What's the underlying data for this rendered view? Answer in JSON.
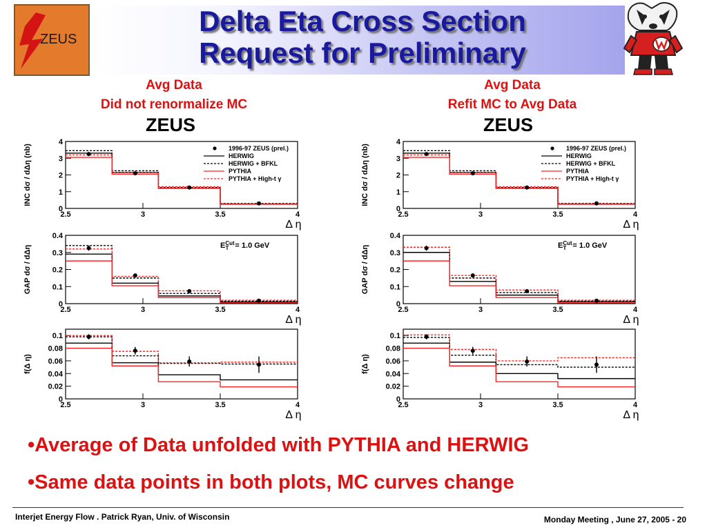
{
  "slide": {
    "title_line1": "Delta Eta Cross Section",
    "title_line2": "Request for Preliminary",
    "logo_text": "ZEUS",
    "bullets": [
      "•Average of Data unfolded with PYTHIA and HERWIG",
      "•Same data points in both plots, MC curves change"
    ],
    "footer_left": "Interjet Energy Flow . Patrick Ryan, Univ. of Wisconsin",
    "footer_right": "Monday Meeting , June 27, 2005 - 20"
  },
  "figures": [
    {
      "subtitle_line1": "Avg Data",
      "subtitle_line2": "Did not renormalize MC",
      "heading": "ZEUS"
    },
    {
      "subtitle_line1": "Avg Data",
      "subtitle_line2": "Refit MC to Avg Data",
      "heading": "ZEUS"
    }
  ],
  "colors": {
    "title": "#1a1a9e",
    "accent_red": "#dd1111",
    "mc_red": "#ff2222",
    "logo_orange": "#e47a2c"
  },
  "chart_data": [
    {
      "figure": "Avg Data / Did not renormalize MC",
      "panel": "INC",
      "type": "line",
      "ylabel": "INC dσ / dΔη (nb)",
      "xlabel": "Δ η",
      "xlim": [
        2.5,
        4
      ],
      "ylim": [
        0,
        4
      ],
      "xticks": [
        "2.5",
        "3",
        "3.5",
        "4"
      ],
      "yticks": [
        "0",
        "1",
        "2",
        "3",
        "4"
      ],
      "bin_edges": [
        2.5,
        2.8,
        3.1,
        3.5,
        4.0
      ],
      "data": {
        "name": "1996-97 ZEUS (prel.)",
        "x": [
          2.65,
          2.95,
          3.3,
          3.75
        ],
        "y": [
          3.25,
          2.1,
          1.25,
          0.3
        ],
        "err": [
          0.1,
          0.06,
          0.04,
          0.02
        ]
      },
      "series": [
        {
          "name": "HERWIG",
          "values": [
            3.3,
            2.15,
            1.2,
            0.25
          ]
        },
        {
          "name": "HERWIG + BFKL",
          "values": [
            3.45,
            2.25,
            1.25,
            0.3
          ]
        },
        {
          "name": "PYTHIA",
          "values": [
            3.05,
            2.05,
            1.2,
            0.25
          ]
        },
        {
          "name": "PYTHIA + High-t γ",
          "values": [
            3.2,
            2.15,
            1.3,
            0.28
          ]
        }
      ],
      "legend_position": "top-right"
    },
    {
      "figure": "Avg Data / Did not renormalize MC",
      "panel": "GAP",
      "type": "line",
      "ylabel": "GAP dσ / dΔη",
      "xlabel": "Δ η",
      "xlim": [
        2.5,
        4
      ],
      "ylim": [
        0,
        0.4
      ],
      "xticks": [
        "2.5",
        "3",
        "3.5",
        "4"
      ],
      "yticks": [
        "0",
        "0.1",
        "0.2",
        "0.3",
        "0.4"
      ],
      "bin_edges": [
        2.5,
        2.8,
        3.1,
        3.5,
        4.0
      ],
      "annotation": "E_T^Cut = 1.0 GeV",
      "data": {
        "name": "1996-97 ZEUS (prel.)",
        "x": [
          2.65,
          2.95,
          3.3,
          3.75
        ],
        "y": [
          0.325,
          0.165,
          0.073,
          0.017
        ],
        "err": [
          0.015,
          0.01,
          0.006,
          0.003
        ]
      },
      "series": [
        {
          "name": "HERWIG",
          "values": [
            0.29,
            0.12,
            0.045,
            0.01
          ]
        },
        {
          "name": "HERWIG + BFKL",
          "values": [
            0.34,
            0.15,
            0.06,
            0.015
          ]
        },
        {
          "name": "PYTHIA",
          "values": [
            0.25,
            0.105,
            0.035,
            0.005
          ]
        },
        {
          "name": "PYTHIA + High-t γ",
          "values": [
            0.32,
            0.16,
            0.075,
            0.02
          ]
        }
      ]
    },
    {
      "figure": "Avg Data / Did not renormalize MC",
      "panel": "f",
      "type": "line",
      "ylabel": "f(Δ η)",
      "xlabel": "Δ η",
      "xlim": [
        2.5,
        4
      ],
      "ylim": [
        0,
        0.11
      ],
      "xticks": [
        "2.5",
        "3",
        "3.5",
        "4"
      ],
      "yticks": [
        "0",
        "0.02",
        "0.04",
        "0.06",
        "0.08",
        "0.1"
      ],
      "bin_edges": [
        2.5,
        2.8,
        3.1,
        3.5,
        4.0
      ],
      "data": {
        "name": "1996-97 ZEUS (prel.)",
        "x": [
          2.65,
          2.95,
          3.3,
          3.75
        ],
        "y": [
          0.098,
          0.076,
          0.059,
          0.054
        ],
        "err": [
          0.004,
          0.006,
          0.008,
          0.013
        ]
      },
      "series": [
        {
          "name": "HERWIG",
          "values": [
            0.088,
            0.057,
            0.038,
            0.03
          ]
        },
        {
          "name": "HERWIG + BFKL",
          "values": [
            0.098,
            0.068,
            0.056,
            0.055
          ]
        },
        {
          "name": "PYTHIA",
          "values": [
            0.08,
            0.052,
            0.027,
            0.019
          ]
        },
        {
          "name": "PYTHIA + High-t γ",
          "values": [
            0.1,
            0.075,
            0.057,
            0.058
          ]
        }
      ]
    },
    {
      "figure": "Avg Data / Refit MC to Avg Data",
      "panel": "INC",
      "type": "line",
      "ylabel": "INC dσ / dΔη (nb)",
      "xlabel": "Δ η",
      "xlim": [
        2.5,
        4
      ],
      "ylim": [
        0,
        4
      ],
      "xticks": [
        "2.5",
        "3",
        "3.5",
        "4"
      ],
      "yticks": [
        "0",
        "1",
        "2",
        "3",
        "4"
      ],
      "bin_edges": [
        2.5,
        2.8,
        3.1,
        3.5,
        4.0
      ],
      "data": {
        "name": "1996-97 ZEUS (prel.)",
        "x": [
          2.65,
          2.95,
          3.3,
          3.75
        ],
        "y": [
          3.25,
          2.1,
          1.25,
          0.3
        ],
        "err": [
          0.1,
          0.06,
          0.04,
          0.02
        ]
      },
      "series": [
        {
          "name": "HERWIG",
          "values": [
            3.3,
            2.15,
            1.2,
            0.25
          ]
        },
        {
          "name": "HERWIG + BFKL",
          "values": [
            3.45,
            2.25,
            1.25,
            0.3
          ]
        },
        {
          "name": "PYTHIA",
          "values": [
            3.05,
            2.05,
            1.2,
            0.25
          ]
        },
        {
          "name": "PYTHIA + High-t γ",
          "values": [
            3.2,
            2.15,
            1.3,
            0.28
          ]
        }
      ],
      "legend_position": "top-right"
    },
    {
      "figure": "Avg Data / Refit MC to Avg Data",
      "panel": "GAP",
      "type": "line",
      "ylabel": "GAP dσ / dΔη",
      "xlabel": "Δ η",
      "xlim": [
        2.5,
        4
      ],
      "ylim": [
        0,
        0.4
      ],
      "xticks": [
        "2.5",
        "3",
        "3.5",
        "4"
      ],
      "yticks": [
        "0",
        "0.1",
        "0.2",
        "0.3",
        "0.4"
      ],
      "bin_edges": [
        2.5,
        2.8,
        3.1,
        3.5,
        4.0
      ],
      "annotation": "E_T^Cut = 1.0 GeV",
      "data": {
        "name": "1996-97 ZEUS (prel.)",
        "x": [
          2.65,
          2.95,
          3.3,
          3.75
        ],
        "y": [
          0.325,
          0.165,
          0.073,
          0.017
        ],
        "err": [
          0.015,
          0.01,
          0.006,
          0.003
        ]
      },
      "series": [
        {
          "name": "HERWIG",
          "values": [
            0.3,
            0.13,
            0.05,
            0.012
          ]
        },
        {
          "name": "HERWIG + BFKL",
          "values": [
            0.33,
            0.15,
            0.065,
            0.015
          ]
        },
        {
          "name": "PYTHIA",
          "values": [
            0.25,
            0.105,
            0.035,
            0.005
          ]
        },
        {
          "name": "PYTHIA + High-t γ",
          "values": [
            0.33,
            0.165,
            0.08,
            0.02
          ]
        }
      ]
    },
    {
      "figure": "Avg Data / Refit MC to Avg Data",
      "panel": "f",
      "type": "line",
      "ylabel": "f(Δ η)",
      "xlabel": "Δ η",
      "xlim": [
        2.5,
        4
      ],
      "ylim": [
        0,
        0.11
      ],
      "xticks": [
        "2.5",
        "3",
        "3.5",
        "4"
      ],
      "yticks": [
        "0",
        "0.02",
        "0.04",
        "0.06",
        "0.08",
        "0.1"
      ],
      "bin_edges": [
        2.5,
        2.8,
        3.1,
        3.5,
        4.0
      ],
      "data": {
        "name": "1996-97 ZEUS (prel.)",
        "x": [
          2.65,
          2.95,
          3.3,
          3.75
        ],
        "y": [
          0.098,
          0.076,
          0.059,
          0.054
        ],
        "err": [
          0.004,
          0.006,
          0.008,
          0.013
        ]
      },
      "series": [
        {
          "name": "HERWIG",
          "values": [
            0.088,
            0.058,
            0.04,
            0.032
          ]
        },
        {
          "name": "HERWIG + BFKL",
          "values": [
            0.097,
            0.069,
            0.054,
            0.05
          ]
        },
        {
          "name": "PYTHIA",
          "values": [
            0.08,
            0.052,
            0.027,
            0.019
          ]
        },
        {
          "name": "PYTHIA + High-t γ",
          "values": [
            0.101,
            0.078,
            0.06,
            0.065
          ]
        }
      ]
    }
  ]
}
